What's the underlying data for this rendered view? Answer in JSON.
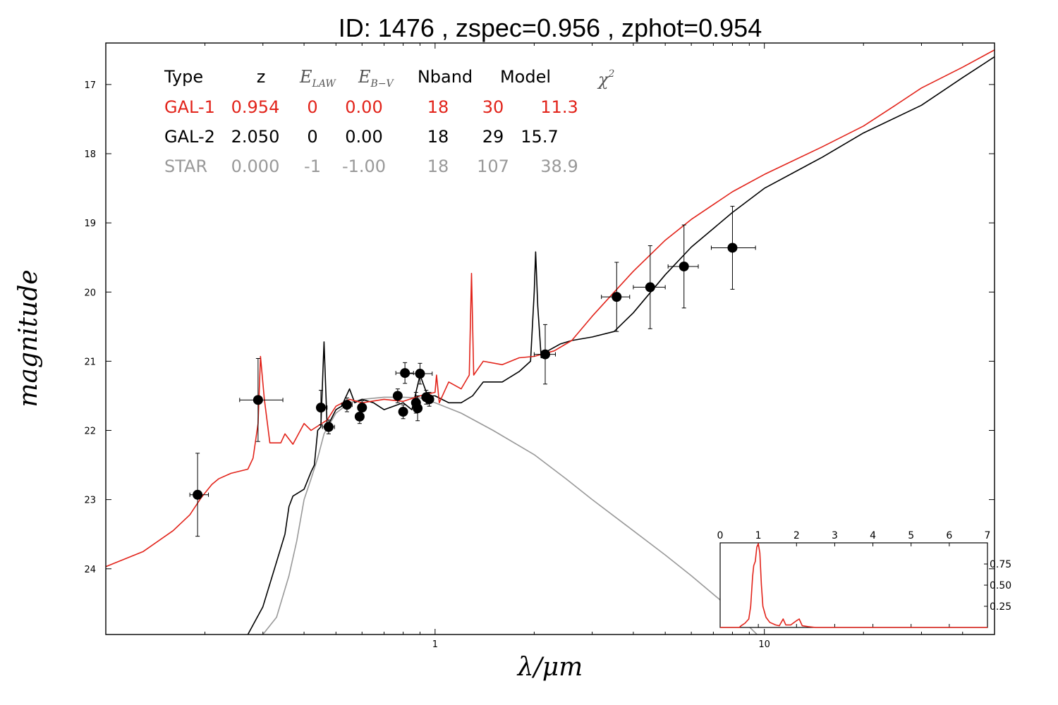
{
  "chart_data": {
    "type": "line",
    "title": "ID:  1476  , zspec=0.956 , zphot=0.954",
    "xlabel": "λ/μm",
    "ylabel": "magnitude",
    "x_scale": "log",
    "xlim": [
      0.1,
      50
    ],
    "ylim": [
      24.95,
      16.4
    ],
    "x_ticks": [
      "1",
      "10"
    ],
    "y_ticks": [
      "17",
      "18",
      "19",
      "20",
      "21",
      "22",
      "23",
      "24"
    ],
    "legend_table": {
      "headers": {
        "type": "Type",
        "z": "z",
        "elaw": "E",
        "elaw_sub": "LAW",
        "ebv": "E",
        "ebv_sub": "B−V",
        "nband": "Nband",
        "model": "Model",
        "chi2": "χ",
        "chi2_sup": "2"
      },
      "rows": [
        {
          "type": "GAL-1",
          "z": "0.954",
          "elaw": "0",
          "ebv": "0.00",
          "nband": "18",
          "model": "30",
          "chi2": "11.3",
          "color": "#e2231a"
        },
        {
          "type": "GAL-2",
          "z": "2.050",
          "elaw": "0",
          "ebv": "0.00",
          "nband": "18",
          "model": "29",
          "chi2": "15.7",
          "color": "#000000"
        },
        {
          "type": "STAR",
          "z": "0.000",
          "elaw": "-1",
          "ebv": "-1.00",
          "nband": "18",
          "model": "107",
          "chi2": "38.9",
          "color": "#999999"
        }
      ]
    },
    "photometry": [
      {
        "x": 0.19,
        "y": 22.93,
        "xerr": [
          0.18,
          0.205
        ],
        "yerr": [
          22.33,
          23.53
        ]
      },
      {
        "x": 0.29,
        "y": 21.56,
        "xerr": [
          0.255,
          0.345
        ],
        "yerr": [
          20.96,
          22.16
        ]
      },
      {
        "x": 0.45,
        "y": 21.67,
        "xerr": [
          0.44,
          0.47
        ],
        "yerr": [
          21.42,
          21.92
        ]
      },
      {
        "x": 0.475,
        "y": 21.95,
        "xerr": [
          0.455,
          0.495
        ],
        "yerr": [
          21.85,
          22.05
        ]
      },
      {
        "x": 0.54,
        "y": 21.63,
        "xerr": [
          0.52,
          0.56
        ],
        "yerr": [
          21.53,
          21.73
        ]
      },
      {
        "x": 0.59,
        "y": 21.8,
        "xerr": [
          0.575,
          0.605
        ],
        "yerr": [
          21.7,
          21.9
        ]
      },
      {
        "x": 0.6,
        "y": 21.67,
        "xerr": [
          0.585,
          0.615
        ],
        "yerr": [
          21.57,
          21.77
        ]
      },
      {
        "x": 0.77,
        "y": 21.5,
        "xerr": [
          0.75,
          0.79
        ],
        "yerr": [
          21.4,
          21.6
        ]
      },
      {
        "x": 0.8,
        "y": 21.73,
        "xerr": [
          0.78,
          0.82
        ],
        "yerr": [
          21.63,
          21.83
        ]
      },
      {
        "x": 0.81,
        "y": 21.17,
        "xerr": [
          0.76,
          0.86
        ],
        "yerr": [
          21.02,
          21.32
        ]
      },
      {
        "x": 0.875,
        "y": 21.6,
        "xerr": [
          0.86,
          0.89
        ],
        "yerr": [
          21.45,
          21.75
        ]
      },
      {
        "x": 0.885,
        "y": 21.68,
        "xerr": [
          0.87,
          0.9
        ],
        "yerr": [
          21.5,
          21.86
        ]
      },
      {
        "x": 0.9,
        "y": 21.18,
        "xerr": [
          0.82,
          0.98
        ],
        "yerr": [
          21.03,
          21.33
        ]
      },
      {
        "x": 0.94,
        "y": 21.52,
        "xerr": [
          0.92,
          0.96
        ],
        "yerr": [
          21.42,
          21.62
        ]
      },
      {
        "x": 0.96,
        "y": 21.55,
        "xerr": [
          0.94,
          0.98
        ],
        "yerr": [
          21.45,
          21.65
        ]
      },
      {
        "x": 2.16,
        "y": 20.9,
        "xerr": [
          2.0,
          2.32
        ],
        "yerr": [
          20.47,
          21.33
        ]
      },
      {
        "x": 3.56,
        "y": 20.07,
        "xerr": [
          3.2,
          3.9
        ],
        "yerr": [
          19.57,
          20.57
        ]
      },
      {
        "x": 4.5,
        "y": 19.93,
        "xerr": [
          4.0,
          5.0
        ],
        "yerr": [
          19.33,
          20.53
        ]
      },
      {
        "x": 5.7,
        "y": 19.63,
        "xerr": [
          5.1,
          6.3
        ],
        "yerr": [
          19.03,
          20.23
        ]
      },
      {
        "x": 8.0,
        "y": 19.36,
        "xerr": [
          6.9,
          9.4
        ],
        "yerr": [
          18.76,
          19.96
        ]
      }
    ],
    "series": [
      {
        "name": "GAL-1",
        "color": "#e2231a",
        "points": [
          [
            0.1,
            23.97
          ],
          [
            0.13,
            23.75
          ],
          [
            0.16,
            23.45
          ],
          [
            0.18,
            23.22
          ],
          [
            0.195,
            22.97
          ],
          [
            0.21,
            22.78
          ],
          [
            0.22,
            22.7
          ],
          [
            0.24,
            22.62
          ],
          [
            0.27,
            22.56
          ],
          [
            0.28,
            22.4
          ],
          [
            0.29,
            21.9
          ],
          [
            0.295,
            20.93
          ],
          [
            0.303,
            21.55
          ],
          [
            0.315,
            22.18
          ],
          [
            0.34,
            22.18
          ],
          [
            0.35,
            22.05
          ],
          [
            0.37,
            22.2
          ],
          [
            0.4,
            21.9
          ],
          [
            0.42,
            22.0
          ],
          [
            0.47,
            21.85
          ],
          [
            0.5,
            21.65
          ],
          [
            0.55,
            21.55
          ],
          [
            0.6,
            21.6
          ],
          [
            0.7,
            21.55
          ],
          [
            0.8,
            21.58
          ],
          [
            0.9,
            21.5
          ],
          [
            1.0,
            21.45
          ],
          [
            1.01,
            21.2
          ],
          [
            1.03,
            21.6
          ],
          [
            1.1,
            21.3
          ],
          [
            1.2,
            21.4
          ],
          [
            1.27,
            21.2
          ],
          [
            1.29,
            19.73
          ],
          [
            1.31,
            21.2
          ],
          [
            1.4,
            21.0
          ],
          [
            1.6,
            21.05
          ],
          [
            1.8,
            20.95
          ],
          [
            2.0,
            20.93
          ],
          [
            2.3,
            20.85
          ],
          [
            2.6,
            20.7
          ],
          [
            3.0,
            20.35
          ],
          [
            3.5,
            20.0
          ],
          [
            4.0,
            19.7
          ],
          [
            5.0,
            19.25
          ],
          [
            6.0,
            18.95
          ],
          [
            8.0,
            18.55
          ],
          [
            10.0,
            18.3
          ],
          [
            15.0,
            17.9
          ],
          [
            20.0,
            17.6
          ],
          [
            25.0,
            17.3
          ],
          [
            30.0,
            17.05
          ],
          [
            40.0,
            16.75
          ],
          [
            50.0,
            16.5
          ]
        ]
      },
      {
        "name": "GAL-2",
        "color": "#000000",
        "points": [
          [
            0.27,
            24.95
          ],
          [
            0.3,
            24.55
          ],
          [
            0.33,
            23.9
          ],
          [
            0.35,
            23.5
          ],
          [
            0.36,
            23.1
          ],
          [
            0.37,
            22.95
          ],
          [
            0.4,
            22.85
          ],
          [
            0.42,
            22.6
          ],
          [
            0.43,
            22.5
          ],
          [
            0.44,
            22.0
          ],
          [
            0.45,
            21.95
          ],
          [
            0.46,
            20.72
          ],
          [
            0.47,
            21.95
          ],
          [
            0.5,
            21.7
          ],
          [
            0.52,
            21.65
          ],
          [
            0.55,
            21.4
          ],
          [
            0.57,
            21.6
          ],
          [
            0.6,
            21.55
          ],
          [
            0.65,
            21.6
          ],
          [
            0.7,
            21.7
          ],
          [
            0.8,
            21.6
          ],
          [
            0.85,
            21.7
          ],
          [
            0.9,
            21.2
          ],
          [
            0.95,
            21.5
          ],
          [
            1.0,
            21.5
          ],
          [
            1.1,
            21.6
          ],
          [
            1.2,
            21.6
          ],
          [
            1.3,
            21.5
          ],
          [
            1.4,
            21.3
          ],
          [
            1.6,
            21.3
          ],
          [
            1.8,
            21.15
          ],
          [
            1.95,
            21.0
          ],
          [
            2.0,
            20.0
          ],
          [
            2.02,
            19.42
          ],
          [
            2.05,
            20.2
          ],
          [
            2.1,
            20.95
          ],
          [
            2.2,
            20.85
          ],
          [
            2.4,
            20.75
          ],
          [
            2.6,
            20.7
          ],
          [
            3.0,
            20.65
          ],
          [
            3.5,
            20.57
          ],
          [
            4.0,
            20.3
          ],
          [
            5.0,
            19.75
          ],
          [
            6.0,
            19.35
          ],
          [
            8.0,
            18.85
          ],
          [
            10.0,
            18.5
          ],
          [
            15.0,
            18.05
          ],
          [
            20.0,
            17.7
          ],
          [
            30.0,
            17.3
          ],
          [
            40.0,
            16.9
          ],
          [
            50.0,
            16.6
          ]
        ]
      },
      {
        "name": "STAR",
        "color": "#999999",
        "points": [
          [
            0.3,
            24.95
          ],
          [
            0.33,
            24.7
          ],
          [
            0.36,
            24.1
          ],
          [
            0.38,
            23.6
          ],
          [
            0.4,
            23.0
          ],
          [
            0.42,
            22.7
          ],
          [
            0.44,
            22.4
          ],
          [
            0.46,
            22.05
          ],
          [
            0.5,
            21.75
          ],
          [
            0.55,
            21.6
          ],
          [
            0.6,
            21.55
          ],
          [
            0.7,
            21.52
          ],
          [
            0.8,
            21.52
          ],
          [
            0.9,
            21.53
          ],
          [
            1.0,
            21.6
          ],
          [
            1.2,
            21.75
          ],
          [
            1.5,
            22.0
          ],
          [
            2.0,
            22.35
          ],
          [
            2.5,
            22.7
          ],
          [
            3.0,
            23.0
          ],
          [
            4.0,
            23.45
          ],
          [
            5.0,
            23.8
          ],
          [
            6.0,
            24.1
          ],
          [
            8.0,
            24.6
          ],
          [
            9.5,
            24.95
          ]
        ]
      }
    ],
    "inset": {
      "type": "line",
      "xlim": [
        0,
        7
      ],
      "x_ticks": [
        "0",
        "1",
        "2",
        "3",
        "4",
        "5",
        "6",
        "7"
      ],
      "y_ticks": [
        "0.25",
        "0.50",
        "0.75"
      ],
      "ylim": [
        0,
        1.0
      ],
      "color": "#e2231a",
      "points": [
        [
          0,
          0.0
        ],
        [
          0.5,
          0.0
        ],
        [
          0.55,
          0.02
        ],
        [
          0.65,
          0.05
        ],
        [
          0.75,
          0.1
        ],
        [
          0.8,
          0.25
        ],
        [
          0.85,
          0.6
        ],
        [
          0.88,
          0.73
        ],
        [
          0.92,
          0.78
        ],
        [
          0.96,
          0.95
        ],
        [
          1.0,
          0.99
        ],
        [
          1.04,
          0.88
        ],
        [
          1.08,
          0.5
        ],
        [
          1.12,
          0.25
        ],
        [
          1.2,
          0.12
        ],
        [
          1.3,
          0.06
        ],
        [
          1.45,
          0.03
        ],
        [
          1.55,
          0.02
        ],
        [
          1.65,
          0.1
        ],
        [
          1.72,
          0.03
        ],
        [
          1.85,
          0.03
        ],
        [
          2.0,
          0.08
        ],
        [
          2.07,
          0.1
        ],
        [
          2.15,
          0.02
        ],
        [
          2.3,
          0.01
        ],
        [
          2.5,
          0.0
        ],
        [
          7.0,
          0.0
        ]
      ]
    }
  }
}
